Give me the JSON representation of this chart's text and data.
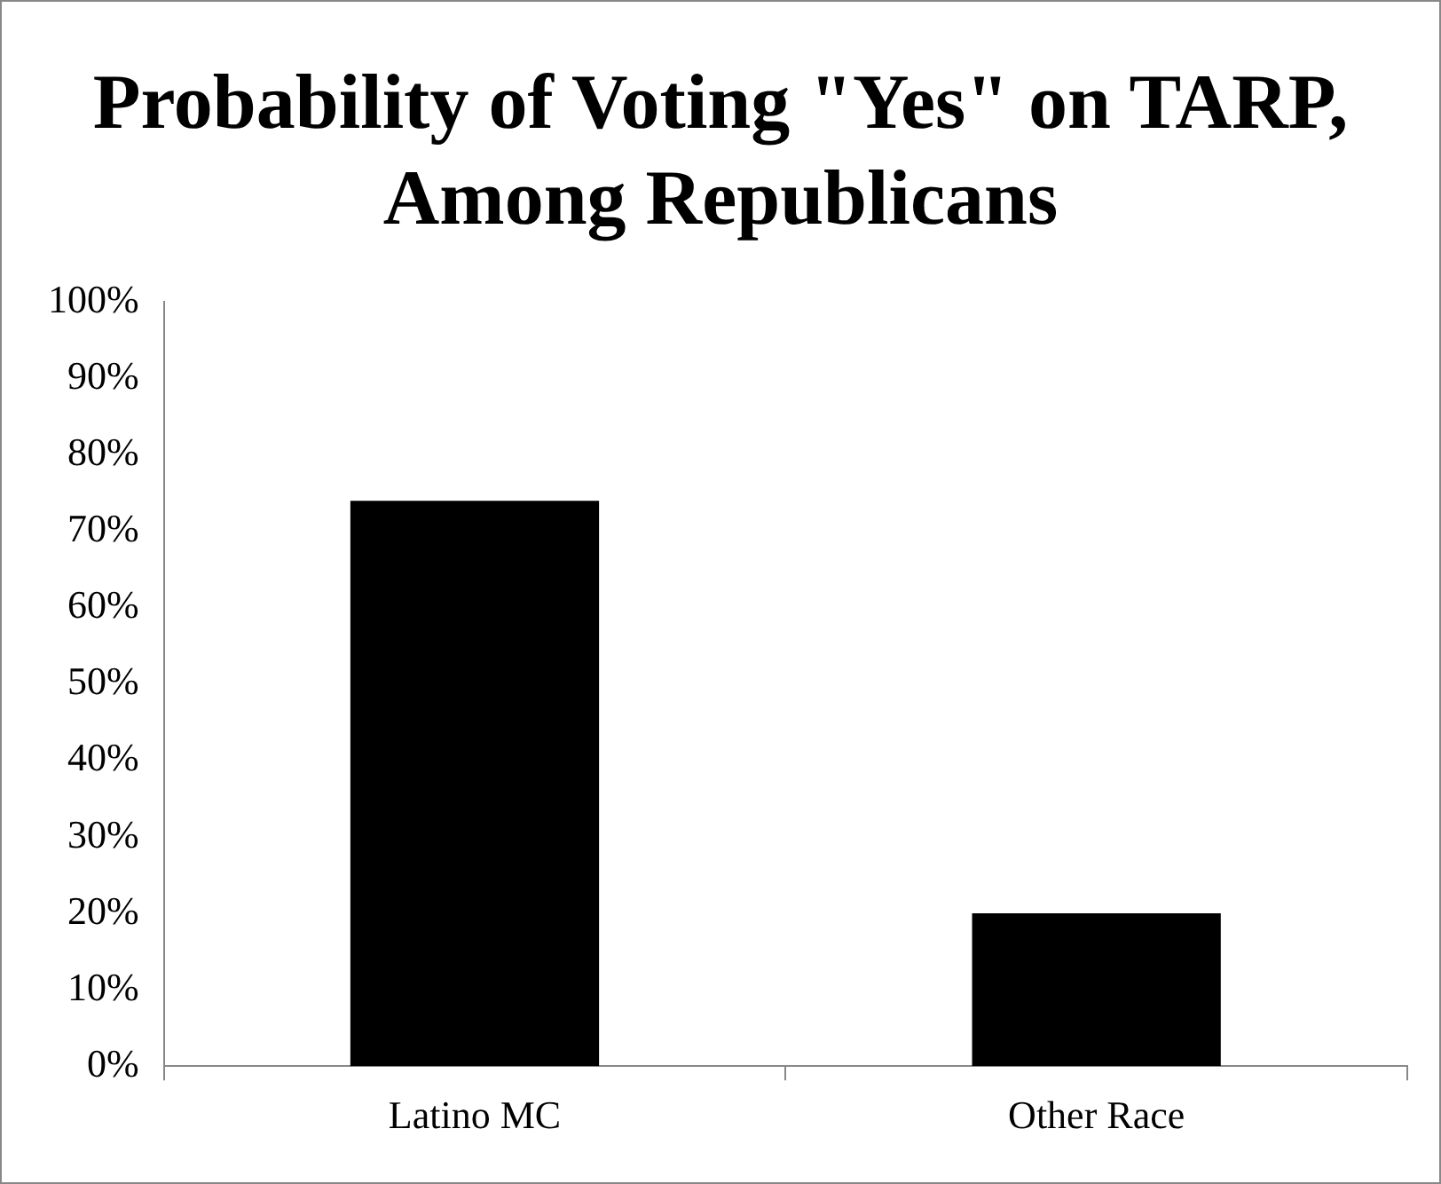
{
  "chart_data": {
    "type": "bar",
    "title": "Probability of Voting \"Yes\" on TARP, Among Republicans",
    "categories": [
      "Latino MC",
      "Other Race"
    ],
    "values": [
      74,
      20
    ],
    "color": "#000000",
    "ylim": [
      0,
      100
    ],
    "yticks": [
      {
        "value": 0,
        "label": "0%"
      },
      {
        "value": 10,
        "label": "10%"
      },
      {
        "value": 20,
        "label": "20%"
      },
      {
        "value": 30,
        "label": "30%"
      },
      {
        "value": 40,
        "label": "40%"
      },
      {
        "value": 50,
        "label": "50%"
      },
      {
        "value": 60,
        "label": "60%"
      },
      {
        "value": 70,
        "label": "70%"
      },
      {
        "value": 80,
        "label": "80%"
      },
      {
        "value": 90,
        "label": "90%"
      },
      {
        "value": 100,
        "label": "100%"
      }
    ],
    "grid": false,
    "legend": false
  }
}
